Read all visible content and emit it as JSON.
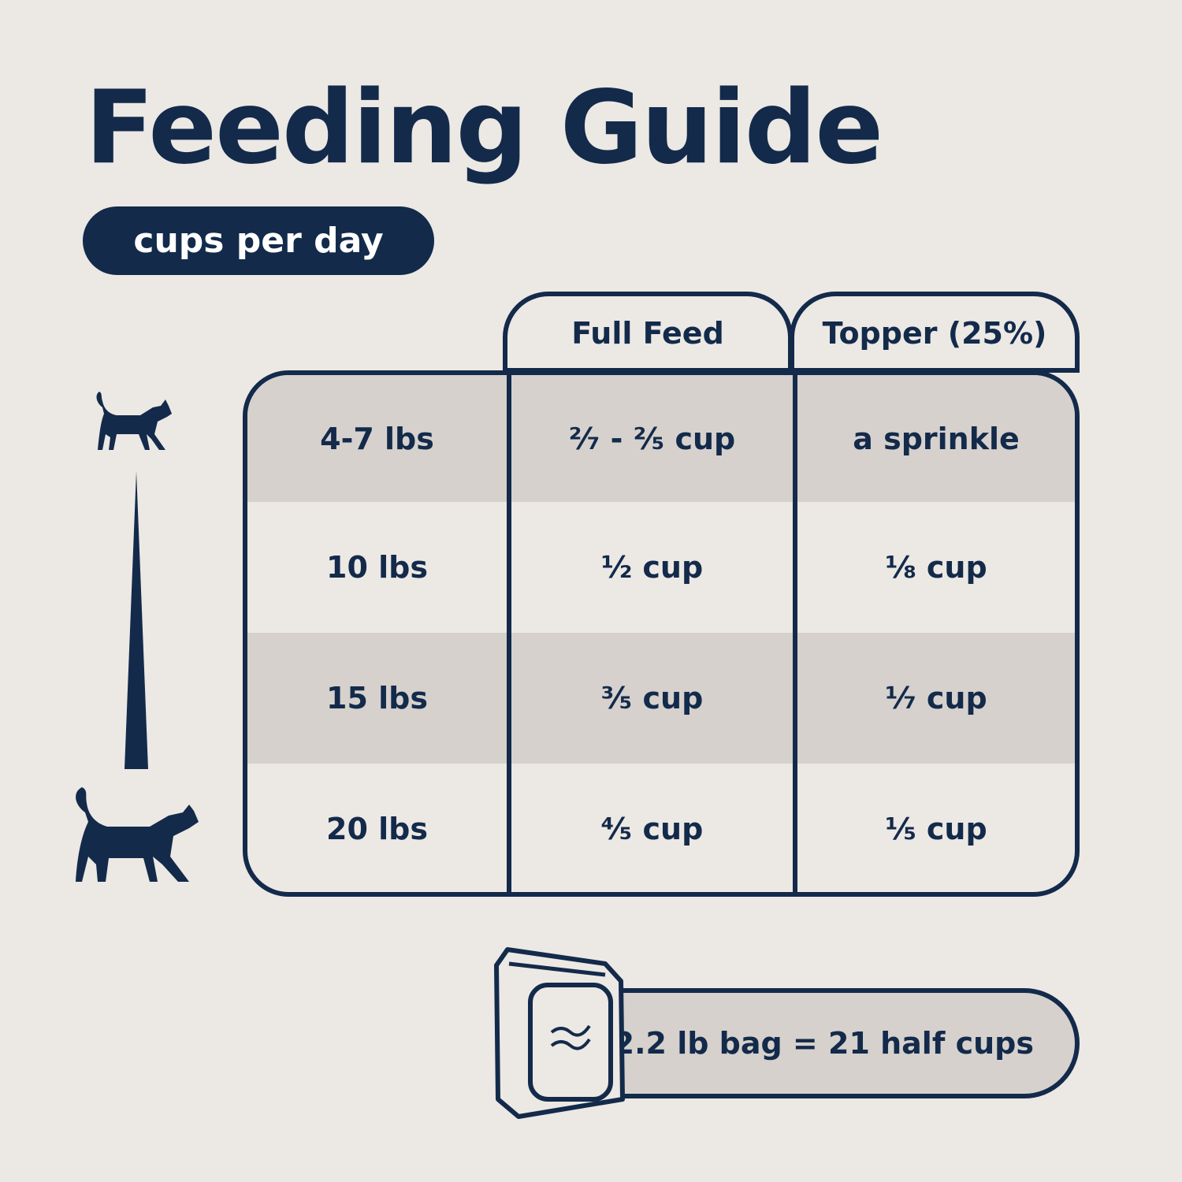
{
  "title": "Feeding Guide",
  "unit_pill": "cups per day",
  "columns": [
    "Full Feed",
    "Topper (25%)"
  ],
  "rows": [
    {
      "weight": "4-7 lbs",
      "full_feed": "²⁄₇ - ²⁄₅ cup",
      "topper": "a sprinkle"
    },
    {
      "weight": "10 lbs",
      "full_feed": "½ cup",
      "topper": "⅛ cup"
    },
    {
      "weight": "15 lbs",
      "full_feed": "³⁄₅ cup",
      "topper": "⅐ cup"
    },
    {
      "weight": "20 lbs",
      "full_feed": "⁴⁄₅ cup",
      "topper": "⅕ cup"
    }
  ],
  "bag_note": "2.2 lb bag = 21 half cups",
  "icons": [
    "small-cat-icon",
    "size-scale-icon",
    "large-cat-icon",
    "food-bag-icon"
  ],
  "colors": {
    "navy": "#132a4a",
    "background": "#ece8e4",
    "shaded_row": "#d6d1cd"
  }
}
